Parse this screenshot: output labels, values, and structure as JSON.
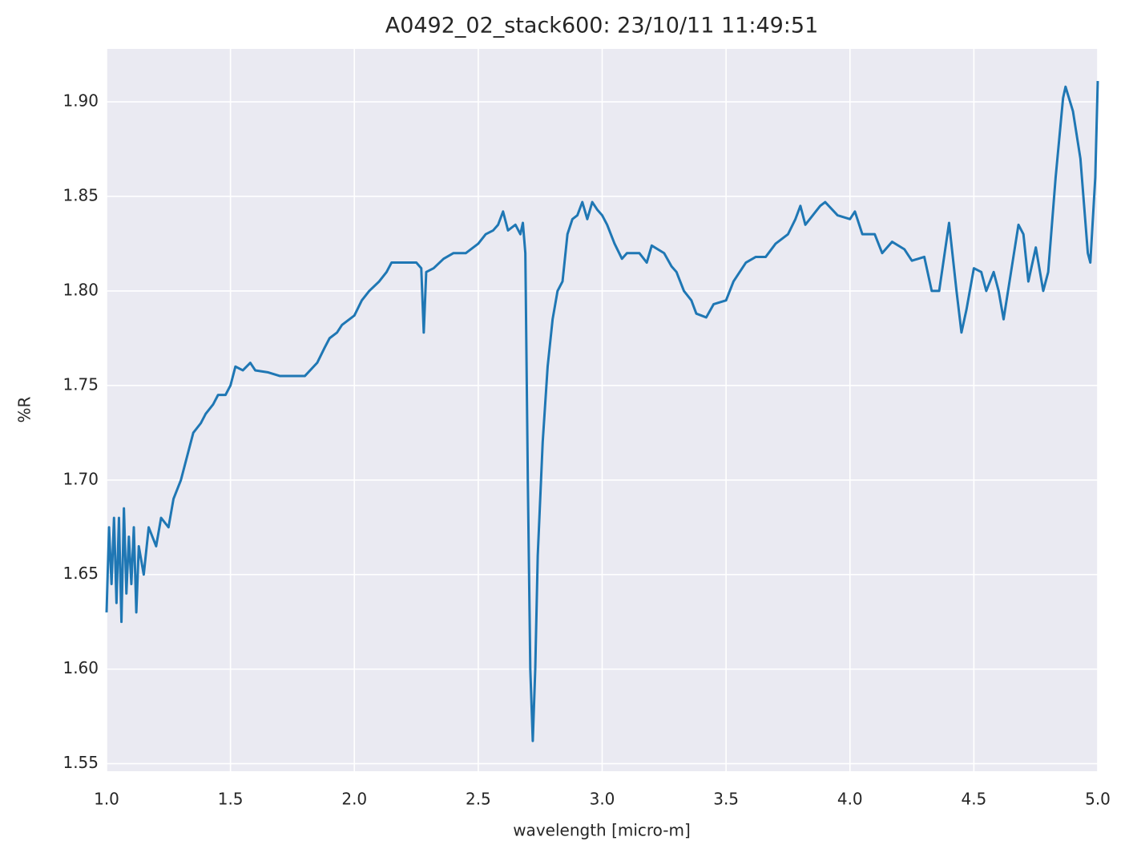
{
  "chart_data": {
    "type": "line",
    "title": "A0492_02_stack600:  23/10/11 11:49:51",
    "xlabel": "wavelength [micro-m]",
    "ylabel": "%R",
    "color": "#1f77b4",
    "grid": true,
    "x": [
      1.0,
      1.01,
      1.02,
      1.03,
      1.04,
      1.05,
      1.06,
      1.07,
      1.08,
      1.09,
      1.1,
      1.11,
      1.12,
      1.13,
      1.15,
      1.17,
      1.2,
      1.22,
      1.25,
      1.27,
      1.3,
      1.33,
      1.35,
      1.38,
      1.4,
      1.43,
      1.45,
      1.48,
      1.5,
      1.52,
      1.55,
      1.58,
      1.6,
      1.65,
      1.7,
      1.75,
      1.8,
      1.85,
      1.88,
      1.9,
      1.93,
      1.95,
      2.0,
      2.03,
      2.06,
      2.1,
      2.13,
      2.15,
      2.2,
      2.25,
      2.27,
      2.28,
      2.29,
      2.32,
      2.36,
      2.4,
      2.45,
      2.5,
      2.53,
      2.56,
      2.58,
      2.6,
      2.62,
      2.65,
      2.67,
      2.68,
      2.69,
      2.7,
      2.71,
      2.72,
      2.73,
      2.74,
      2.76,
      2.78,
      2.8,
      2.82,
      2.84,
      2.86,
      2.88,
      2.9,
      2.92,
      2.94,
      2.96,
      2.98,
      3.0,
      3.02,
      3.05,
      3.08,
      3.1,
      3.15,
      3.18,
      3.2,
      3.25,
      3.28,
      3.3,
      3.33,
      3.36,
      3.38,
      3.42,
      3.45,
      3.5,
      3.53,
      3.58,
      3.62,
      3.66,
      3.7,
      3.75,
      3.78,
      3.8,
      3.82,
      3.85,
      3.88,
      3.9,
      3.95,
      4.0,
      4.02,
      4.05,
      4.1,
      4.13,
      4.17,
      4.22,
      4.25,
      4.3,
      4.33,
      4.36,
      4.4,
      4.43,
      4.45,
      4.47,
      4.5,
      4.53,
      4.55,
      4.58,
      4.6,
      4.62,
      4.65,
      4.68,
      4.7,
      4.72,
      4.75,
      4.78,
      4.8,
      4.83,
      4.86,
      4.87,
      4.9,
      4.93,
      4.96,
      4.97,
      4.99,
      5.0
    ],
    "values": [
      1.63,
      1.675,
      1.645,
      1.68,
      1.635,
      1.68,
      1.625,
      1.685,
      1.64,
      1.67,
      1.645,
      1.675,
      1.63,
      1.665,
      1.65,
      1.675,
      1.665,
      1.68,
      1.675,
      1.69,
      1.7,
      1.715,
      1.725,
      1.73,
      1.735,
      1.74,
      1.745,
      1.745,
      1.75,
      1.76,
      1.758,
      1.762,
      1.758,
      1.757,
      1.755,
      1.755,
      1.755,
      1.762,
      1.77,
      1.775,
      1.778,
      1.782,
      1.787,
      1.795,
      1.8,
      1.805,
      1.81,
      1.815,
      1.815,
      1.815,
      1.812,
      1.778,
      1.81,
      1.812,
      1.817,
      1.82,
      1.82,
      1.825,
      1.83,
      1.832,
      1.835,
      1.842,
      1.832,
      1.835,
      1.83,
      1.836,
      1.82,
      1.7,
      1.6,
      1.562,
      1.6,
      1.66,
      1.72,
      1.76,
      1.785,
      1.8,
      1.805,
      1.83,
      1.838,
      1.84,
      1.847,
      1.838,
      1.847,
      1.843,
      1.84,
      1.835,
      1.825,
      1.817,
      1.82,
      1.82,
      1.815,
      1.824,
      1.82,
      1.813,
      1.81,
      1.8,
      1.795,
      1.788,
      1.786,
      1.793,
      1.795,
      1.805,
      1.815,
      1.818,
      1.818,
      1.825,
      1.83,
      1.838,
      1.845,
      1.835,
      1.84,
      1.845,
      1.847,
      1.84,
      1.838,
      1.842,
      1.83,
      1.83,
      1.82,
      1.826,
      1.822,
      1.816,
      1.818,
      1.8,
      1.8,
      1.836,
      1.8,
      1.778,
      1.79,
      1.812,
      1.81,
      1.8,
      1.81,
      1.8,
      1.785,
      1.81,
      1.835,
      1.83,
      1.805,
      1.823,
      1.8,
      1.81,
      1.86,
      1.902,
      1.908,
      1.895,
      1.87,
      1.82,
      1.815,
      1.86,
      1.911
    ],
    "xlim": [
      1,
      5
    ],
    "xticks": [
      {
        "value": 1,
        "label": "1.0"
      },
      1.5,
      {
        "value": 2,
        "label": "2.0"
      },
      2.5,
      {
        "value": 3,
        "label": "3.0"
      },
      3.5,
      {
        "value": 4,
        "label": "4.0"
      },
      4.5,
      {
        "value": 5,
        "label": "5.0"
      }
    ],
    "ylim": [
      1.546,
      1.928
    ],
    "yticks": [
      1.55,
      {
        "value": 1.6,
        "label": "1.60"
      },
      1.65,
      {
        "value": 1.7,
        "label": "1.70"
      },
      1.75,
      {
        "value": 1.8,
        "label": "1.80"
      },
      1.85,
      {
        "value": 1.9,
        "label": "1.90"
      }
    ]
  }
}
